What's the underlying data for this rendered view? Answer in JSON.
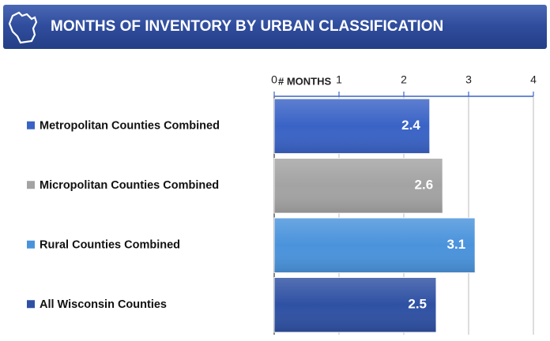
{
  "chart_data": {
    "type": "barh",
    "title": "MONTHS OF INVENTORY BY URBAN CLASSIFICATION",
    "xlabel": "# MONTHS",
    "categories": [
      "Metropolitan Counties Combined",
      "Micropolitan Counties Combined",
      "Rural Counties Combined",
      "All Wisconsin Counties"
    ],
    "values": [
      2.4,
      2.6,
      3.1,
      2.5
    ],
    "colors": [
      "#3a63c6",
      "#a3a3a3",
      "#4a93dc",
      "#2f51a3"
    ],
    "xlim": [
      0,
      4
    ],
    "xticks": [
      0,
      1,
      2,
      3,
      4
    ],
    "grid": true
  }
}
